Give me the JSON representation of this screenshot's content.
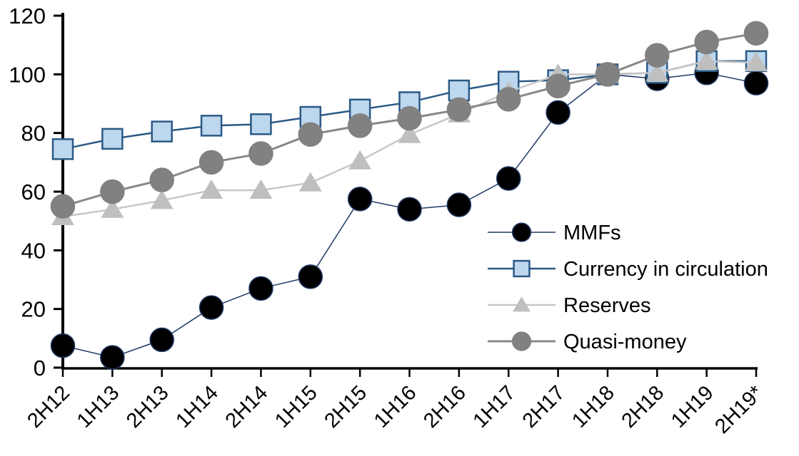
{
  "chart_data": {
    "type": "line",
    "title": "",
    "categories": [
      "2H12",
      "1H13",
      "2H13",
      "1H14",
      "2H14",
      "1H15",
      "2H15",
      "1H16",
      "2H16",
      "1H17",
      "2H17",
      "1H18",
      "2H18",
      "1H19",
      "2H19*"
    ],
    "series": [
      {
        "name": "MMFs",
        "marker": "circle",
        "marker_fill": "#000000",
        "marker_stroke": "#1f3864",
        "line_color": "#1f3864",
        "line_width": 1.5,
        "values": [
          7.5,
          3.5,
          9.5,
          20.5,
          27,
          31,
          57.5,
          54,
          55.5,
          64.5,
          87,
          100,
          98.5,
          100.5,
          97
        ]
      },
      {
        "name": "Currency in circulation",
        "marker": "square",
        "marker_fill": "#bdd7ee",
        "marker_stroke": "#2c5985",
        "line_color": "#2c5985",
        "line_width": 2.5,
        "values": [
          74.5,
          78,
          80.5,
          82.5,
          83,
          85.5,
          88,
          90.5,
          94.5,
          97.5,
          98,
          100,
          100.5,
          104.5,
          104.5
        ]
      },
      {
        "name": "Reserves",
        "marker": "triangle",
        "marker_fill": "#bfbfbf",
        "marker_stroke": "#bfbfbf",
        "line_color": "#c7c7c7",
        "line_width": 2.5,
        "values": [
          51.5,
          54,
          57,
          60.5,
          60.5,
          63,
          70.5,
          79.5,
          86.5,
          94,
          100,
          100,
          100.5,
          104.5,
          104
        ]
      },
      {
        "name": "Quasi-money",
        "marker": "circle",
        "marker_fill": "#818181",
        "marker_stroke": "#818181",
        "line_color": "#888888",
        "line_width": 3,
        "values": [
          55,
          60,
          64,
          70,
          73,
          79.5,
          82.5,
          85,
          88,
          91.5,
          96,
          100,
          106.5,
          111,
          114
        ]
      }
    ],
    "ylim": [
      0,
      120
    ],
    "ytick_interval": 20,
    "ytick_labels": [
      "0",
      "20",
      "40",
      "60",
      "80",
      "100",
      "120"
    ],
    "grid": false,
    "legend_position": "inside-right",
    "axis_color": "#000000"
  }
}
